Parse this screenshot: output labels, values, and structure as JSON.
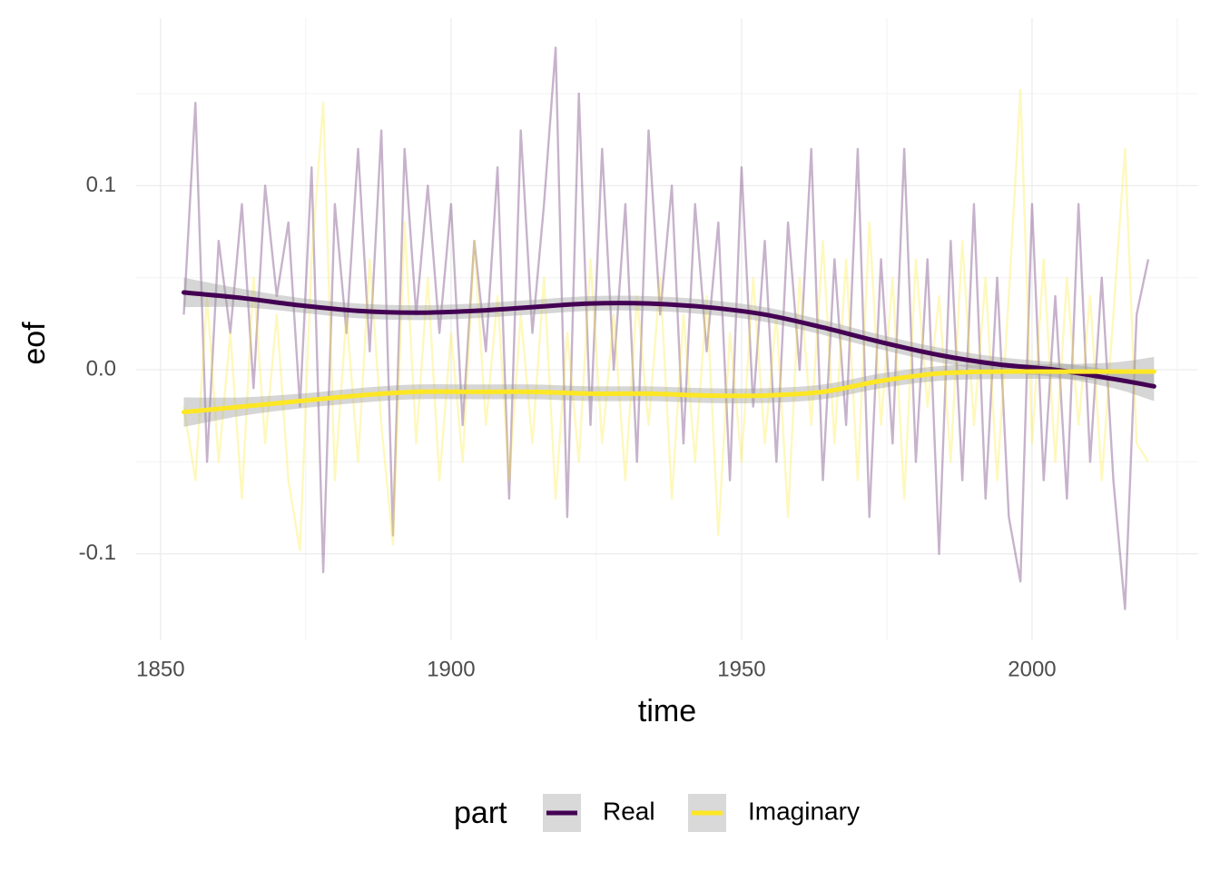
{
  "chart_data": {
    "type": "line",
    "x_label": "time",
    "y_label": "eof",
    "legend_title": "part",
    "legend_position": "bottom",
    "grid": true,
    "xlim": [
      1845.8,
      2028.6
    ],
    "ylim": [
      -0.147,
      0.191
    ],
    "xticks": [
      1850,
      1900,
      1950,
      2000
    ],
    "yticks": [
      -0.1,
      {
        "value": 0,
        "label": "0.0"
      },
      0.1
    ],
    "x_minor_ticks": [
      1875,
      1925,
      1975,
      2025
    ],
    "y_minor_ticks": [
      -0.05,
      0.05,
      0.15
    ],
    "x": [
      1854,
      1856,
      1858,
      1860,
      1862,
      1864,
      1866,
      1868,
      1870,
      1872,
      1874,
      1876,
      1878,
      1880,
      1882,
      1884,
      1886,
      1888,
      1890,
      1892,
      1894,
      1896,
      1898,
      1900,
      1902,
      1904,
      1906,
      1908,
      1910,
      1912,
      1914,
      1916,
      1918,
      1920,
      1922,
      1924,
      1926,
      1928,
      1930,
      1932,
      1934,
      1936,
      1938,
      1940,
      1942,
      1944,
      1946,
      1948,
      1950,
      1952,
      1954,
      1956,
      1958,
      1960,
      1962,
      1964,
      1966,
      1968,
      1970,
      1972,
      1974,
      1976,
      1978,
      1980,
      1982,
      1984,
      1986,
      1988,
      1990,
      1992,
      1994,
      1996,
      1998,
      2000,
      2002,
      2004,
      2006,
      2008,
      2010,
      2012,
      2014,
      2016,
      2018,
      2020
    ],
    "smooth_x": [
      1854,
      1864,
      1874,
      1884,
      1894,
      1904,
      1914,
      1924,
      1934,
      1944,
      1954,
      1964,
      1974,
      1984,
      1994,
      2004,
      2014,
      2021
    ],
    "series": [
      {
        "name": "Real",
        "color": "#440154",
        "values": [
          0.03,
          0.145,
          -0.05,
          0.07,
          0.02,
          0.09,
          -0.01,
          0.1,
          0.04,
          0.08,
          -0.02,
          0.11,
          -0.11,
          0.09,
          0.02,
          0.12,
          0.01,
          0.13,
          -0.09,
          0.12,
          0.03,
          0.1,
          0.02,
          0.09,
          -0.03,
          0.07,
          0.01,
          0.11,
          -0.07,
          0.13,
          0.02,
          0.09,
          0.175,
          -0.08,
          0.15,
          -0.03,
          0.12,
          0.0,
          0.09,
          -0.05,
          0.13,
          0.03,
          0.1,
          -0.04,
          0.09,
          0.01,
          0.08,
          -0.06,
          0.11,
          -0.02,
          0.07,
          -0.05,
          0.08,
          0.0,
          0.12,
          -0.06,
          0.06,
          -0.03,
          0.12,
          -0.08,
          0.06,
          -0.04,
          0.12,
          -0.05,
          0.06,
          -0.1,
          0.07,
          -0.06,
          0.09,
          -0.07,
          0.05,
          -0.08,
          -0.115,
          0.09,
          -0.06,
          0.04,
          -0.07,
          0.09,
          -0.05,
          0.05,
          -0.06,
          -0.13,
          0.03,
          0.06
        ],
        "smooth": [
          0.042,
          0.039,
          0.035,
          0.032,
          0.031,
          0.032,
          0.034,
          0.036,
          0.036,
          0.034,
          0.03,
          0.023,
          0.015,
          0.008,
          0.003,
          0.0,
          -0.005,
          -0.009
        ],
        "smooth_lower": [
          0.034,
          0.034,
          0.031,
          0.028,
          0.027,
          0.028,
          0.03,
          0.032,
          0.032,
          0.03,
          0.026,
          0.019,
          0.011,
          0.004,
          -0.001,
          -0.004,
          -0.01,
          -0.017
        ],
        "smooth_upper": [
          0.05,
          0.044,
          0.039,
          0.036,
          0.035,
          0.036,
          0.038,
          0.04,
          0.04,
          0.038,
          0.034,
          0.027,
          0.019,
          0.012,
          0.007,
          0.004,
          0.0,
          -0.001
        ]
      },
      {
        "name": "Imaginary",
        "color": "#fde725",
        "values": [
          -0.02,
          -0.06,
          0.04,
          -0.05,
          0.02,
          -0.07,
          0.05,
          -0.04,
          0.03,
          -0.06,
          -0.098,
          0.06,
          0.145,
          -0.06,
          0.03,
          -0.05,
          0.06,
          -0.03,
          -0.095,
          0.08,
          -0.04,
          0.05,
          -0.06,
          0.02,
          -0.05,
          0.07,
          -0.03,
          0.04,
          -0.06,
          0.03,
          -0.04,
          0.05,
          -0.07,
          0.02,
          -0.05,
          0.06,
          -0.04,
          0.03,
          -0.06,
          0.04,
          -0.03,
          0.05,
          -0.07,
          0.03,
          -0.05,
          0.04,
          -0.09,
          0.02,
          -0.05,
          0.05,
          -0.04,
          0.03,
          -0.08,
          0.05,
          -0.03,
          0.07,
          -0.04,
          0.06,
          -0.06,
          0.08,
          -0.03,
          0.05,
          -0.07,
          0.06,
          -0.02,
          0.04,
          -0.05,
          0.07,
          -0.03,
          0.05,
          -0.06,
          0.04,
          0.152,
          -0.04,
          0.06,
          -0.05,
          0.05,
          -0.03,
          0.04,
          -0.06,
          0.03,
          0.12,
          -0.04,
          -0.05
        ],
        "smooth": [
          -0.023,
          -0.02,
          -0.017,
          -0.014,
          -0.012,
          -0.012,
          -0.012,
          -0.013,
          -0.013,
          -0.014,
          -0.014,
          -0.012,
          -0.006,
          -0.002,
          -0.001,
          -0.001,
          -0.001,
          -0.001
        ],
        "smooth_lower": [
          -0.031,
          -0.025,
          -0.021,
          -0.018,
          -0.016,
          -0.016,
          -0.016,
          -0.017,
          -0.017,
          -0.018,
          -0.018,
          -0.016,
          -0.01,
          -0.006,
          -0.005,
          -0.005,
          -0.006,
          -0.009
        ],
        "smooth_upper": [
          -0.015,
          -0.015,
          -0.013,
          -0.01,
          -0.008,
          -0.008,
          -0.008,
          -0.009,
          -0.009,
          -0.01,
          -0.01,
          -0.008,
          -0.002,
          0.002,
          0.003,
          0.003,
          0.004,
          0.007
        ]
      }
    ]
  }
}
